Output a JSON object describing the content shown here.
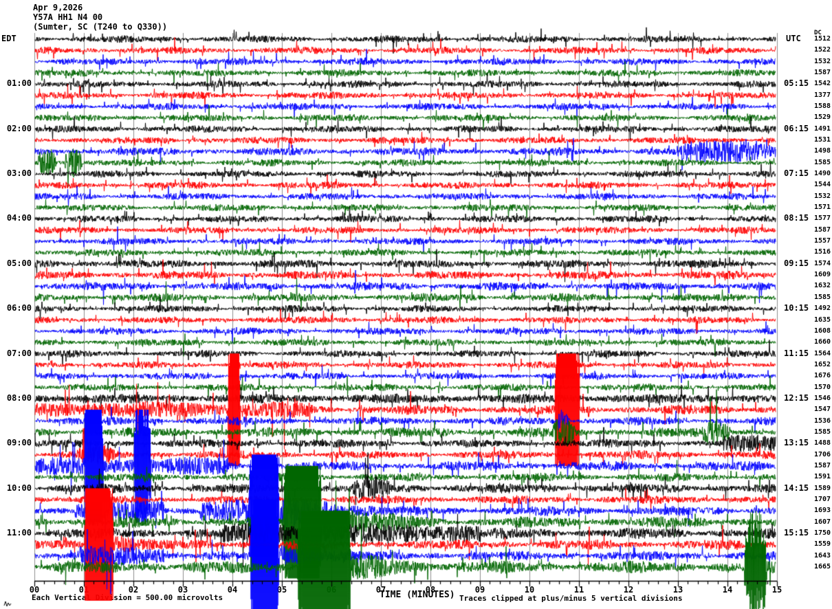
{
  "header": {
    "date": "Apr 9,2026",
    "station": "Y57A HH1 N4 00",
    "location": "(Sumter, SC (T240 to Q330))"
  },
  "axes": {
    "left_timezone": "EDT",
    "right_timezone": "UTC",
    "dc_label": "DC",
    "x_label": "TIME (MINUTES)"
  },
  "footer": {
    "scale_note": "Each Vertical Division = 500.00 microvolts",
    "clip_note": "Traces clipped at plus/minus 5 vertical divisions"
  },
  "chart_data": {
    "type": "line",
    "subtype": "helicorder-seismogram",
    "title": "Y57A HH1 N4 00 (Sumter, SC (T240 to Q330)) Apr 9,2026",
    "xlabel": "TIME (MINUTES)",
    "minutes_per_line": 15,
    "row_count": 48,
    "minutes_per_row_step": 15,
    "x_ticks": [
      "00",
      "01",
      "02",
      "03",
      "04",
      "05",
      "06",
      "07",
      "08",
      "09",
      "10",
      "11",
      "12",
      "13",
      "14",
      "15"
    ],
    "minor_ticks_per_minute": 5,
    "division_microvolts": 500.0,
    "clip_divisions": 5,
    "grid_color": "#8c8c8c",
    "axis_color": "#000000",
    "trace_colors": [
      "#000000",
      "#ff0000",
      "#0000ff",
      "#006600"
    ],
    "left_time_labels": [
      {
        "row": 4,
        "label": "01:00"
      },
      {
        "row": 8,
        "label": "02:00"
      },
      {
        "row": 12,
        "label": "03:00"
      },
      {
        "row": 16,
        "label": "04:00"
      },
      {
        "row": 20,
        "label": "05:00"
      },
      {
        "row": 24,
        "label": "06:00"
      },
      {
        "row": 28,
        "label": "07:00"
      },
      {
        "row": 32,
        "label": "08:00"
      },
      {
        "row": 36,
        "label": "09:00"
      },
      {
        "row": 40,
        "label": "10:00"
      },
      {
        "row": 44,
        "label": "11:00"
      }
    ],
    "right_time_labels": [
      {
        "row": 4,
        "label": "05:15"
      },
      {
        "row": 8,
        "label": "06:15"
      },
      {
        "row": 12,
        "label": "07:15"
      },
      {
        "row": 16,
        "label": "08:15"
      },
      {
        "row": 20,
        "label": "09:15"
      },
      {
        "row": 24,
        "label": "10:15"
      },
      {
        "row": 28,
        "label": "11:15"
      },
      {
        "row": 32,
        "label": "12:15"
      },
      {
        "row": 36,
        "label": "13:15"
      },
      {
        "row": 40,
        "label": "14:15"
      },
      {
        "row": 44,
        "label": "15:15"
      }
    ],
    "dc_offsets": [
      1512,
      1522,
      1532,
      1587,
      1542,
      1377,
      1588,
      1529,
      1491,
      1531,
      1498,
      1585,
      1490,
      1544,
      1532,
      1571,
      1577,
      1587,
      1557,
      1516,
      1574,
      1609,
      1632,
      1585,
      1492,
      1635,
      1608,
      1660,
      1564,
      1652,
      1676,
      1570,
      1546,
      1547,
      1536,
      1585,
      1488,
      1706,
      1587,
      1591,
      1589,
      1707,
      1693,
      1607,
      1750,
      1559,
      1643,
      1665
    ],
    "base_amplitude": [
      5,
      5,
      5,
      5,
      5,
      5,
      5,
      5,
      5,
      5,
      6,
      5,
      5,
      5,
      5,
      5,
      5,
      5,
      5,
      5,
      6,
      6,
      6,
      6,
      5,
      5,
      5,
      5,
      5,
      5,
      5,
      5,
      5,
      7,
      6,
      7,
      6,
      6,
      7,
      6,
      7,
      6,
      7,
      8,
      8,
      7,
      7,
      9
    ],
    "events": [
      {
        "row": 10,
        "t0": 12.95,
        "t1": 15.0,
        "amp": 14,
        "shape": "burst"
      },
      {
        "row": 11,
        "t0": 0.05,
        "t1": 0.42,
        "amp": 22,
        "shape": "burst"
      },
      {
        "row": 11,
        "t0": 0.6,
        "t1": 0.95,
        "amp": 24,
        "shape": "burst"
      },
      {
        "row": 32,
        "t0": 0.0,
        "t1": 15.0,
        "amp": 2,
        "shape": "flat"
      },
      {
        "row": 33,
        "t0": 0.0,
        "t1": 5.6,
        "amp": 6,
        "shape": "flat"
      },
      {
        "row": 33,
        "t0": 3.9,
        "t1": 4.14,
        "amp": 300,
        "shape": "burst"
      },
      {
        "row": 33,
        "t0": 10.5,
        "t1": 11.0,
        "amp": 300,
        "shape": "burst"
      },
      {
        "row": 34,
        "t0": 10.55,
        "t1": 10.8,
        "amp": 13,
        "shape": "burst"
      },
      {
        "row": 35,
        "t0": 10.45,
        "t1": 10.9,
        "amp": 18,
        "shape": "burst"
      },
      {
        "row": 35,
        "t0": 13.45,
        "t1": 14.05,
        "amp": 16,
        "shape": "burst"
      },
      {
        "row": 36,
        "t0": 13.9,
        "t1": 15.0,
        "amp": 7,
        "shape": "flat"
      },
      {
        "row": 37,
        "t0": 0.85,
        "t1": 1.65,
        "amp": 11,
        "shape": "burst"
      },
      {
        "row": 38,
        "t0": 0.0,
        "t1": 3.9,
        "amp": 7,
        "shape": "flat"
      },
      {
        "row": 38,
        "t0": 1.0,
        "t1": 1.38,
        "amp": 300,
        "shape": "burst"
      },
      {
        "row": 38,
        "t0": 2.0,
        "t1": 2.34,
        "amp": 140,
        "shape": "burst"
      },
      {
        "row": 40,
        "t0": 6.4,
        "t1": 7.2,
        "amp": 12,
        "shape": "burst"
      },
      {
        "row": 42,
        "t0": 0.8,
        "t1": 2.6,
        "amp": 9,
        "shape": "flat"
      },
      {
        "row": 42,
        "t0": 3.3,
        "t1": 4.32,
        "amp": 13,
        "shape": "flat"
      },
      {
        "row": 42,
        "t0": 4.32,
        "t1": 4.92,
        "amp": 300,
        "shape": "burst"
      },
      {
        "row": 42,
        "t0": 4.92,
        "t1": 7.2,
        "amp": 22,
        "shape": "decay"
      },
      {
        "row": 43,
        "t0": 5.02,
        "t1": 5.78,
        "amp": 300,
        "shape": "burst"
      },
      {
        "row": 43,
        "t0": 5.78,
        "t1": 8.2,
        "amp": 20,
        "shape": "decay"
      },
      {
        "row": 44,
        "t0": 3.8,
        "t1": 9.0,
        "amp": 8,
        "shape": "flat"
      },
      {
        "row": 45,
        "t0": 1.0,
        "t1": 1.58,
        "amp": 300,
        "shape": "burst"
      },
      {
        "row": 45,
        "t0": 1.58,
        "t1": 2.6,
        "amp": 14,
        "shape": "decay"
      },
      {
        "row": 46,
        "t0": 4.35,
        "t1": 4.92,
        "amp": 300,
        "shape": "burst"
      },
      {
        "row": 46,
        "t0": 4.92,
        "t1": 6.8,
        "amp": 14,
        "shape": "decay"
      },
      {
        "row": 46,
        "t0": 0.9,
        "t1": 2.6,
        "amp": 8,
        "shape": "flat"
      },
      {
        "row": 47,
        "t0": 5.3,
        "t1": 6.38,
        "amp": 300,
        "shape": "burst"
      },
      {
        "row": 47,
        "t0": 6.38,
        "t1": 8.5,
        "amp": 12,
        "shape": "decay"
      },
      {
        "row": 47,
        "t0": 14.32,
        "t1": 14.78,
        "amp": 85,
        "shape": "burst"
      }
    ]
  }
}
